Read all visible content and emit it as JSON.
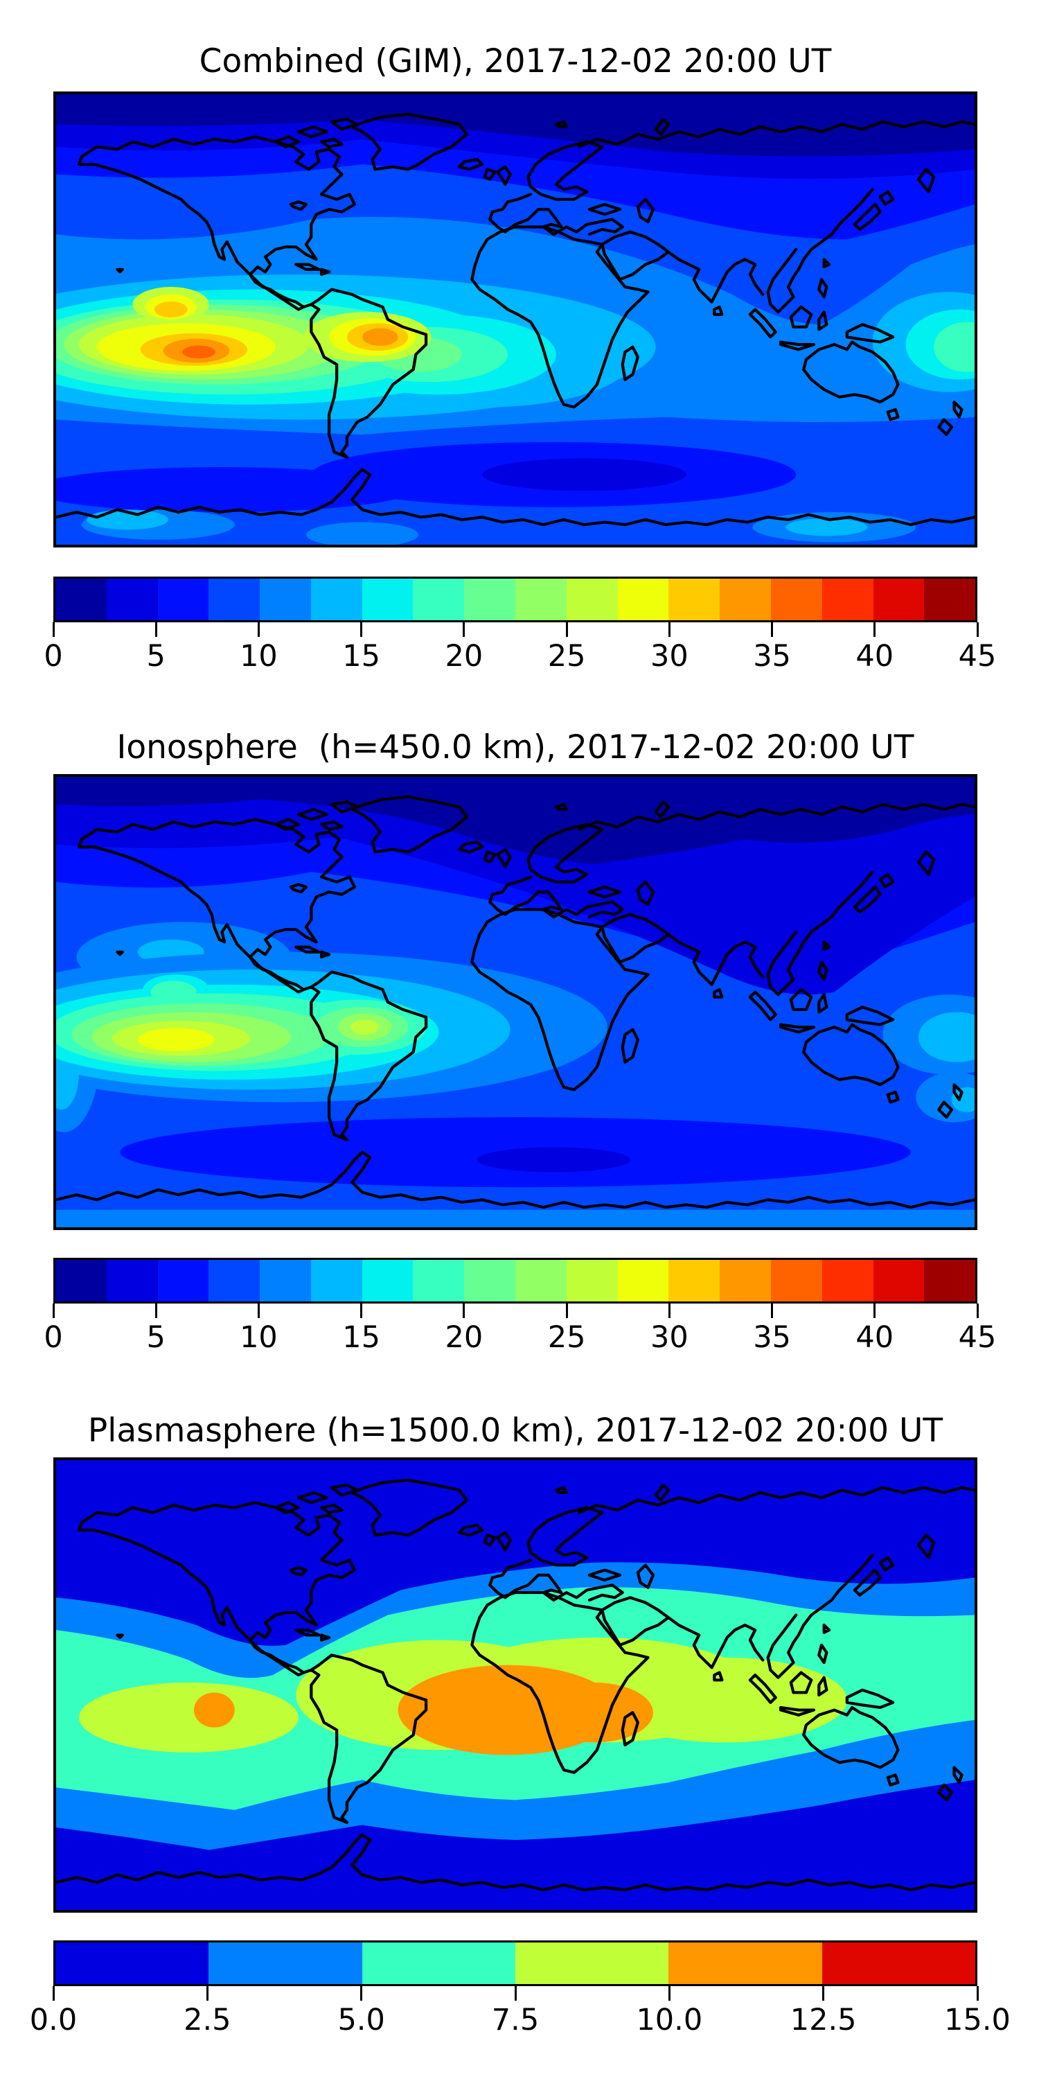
{
  "figure": {
    "background": "#ffffff",
    "frame_color": "#000000"
  },
  "panels": [
    {
      "id": "combined",
      "title": "Combined (GIM), 2017-12-02 20:00 UT",
      "colorbar": {
        "orientation": "horizontal",
        "vmin": 0,
        "vmax": 45,
        "level_step": 2.5,
        "tick_labels": [
          "0",
          "5",
          "10",
          "15",
          "20",
          "25",
          "30",
          "35",
          "40",
          "45"
        ],
        "tick_values": [
          0,
          5,
          10,
          15,
          20,
          25,
          30,
          35,
          40,
          45
        ],
        "segment_colors": [
          "#0000a0",
          "#0000e0",
          "#0010ff",
          "#0047ff",
          "#0080ff",
          "#00b8ff",
          "#00f1ef",
          "#37ffc0",
          "#65ff92",
          "#92ff65",
          "#c0ff37",
          "#eeff09",
          "#ffcb00",
          "#ff9700",
          "#ff6300",
          "#ff2e00",
          "#e00600",
          "#9e0000"
        ]
      }
    },
    {
      "id": "ionosphere",
      "title": "Ionosphere  (h=450.0 km), 2017-12-02 20:00 UT",
      "colorbar": {
        "orientation": "horizontal",
        "vmin": 0,
        "vmax": 45,
        "level_step": 2.5,
        "tick_labels": [
          "0",
          "5",
          "10",
          "15",
          "20",
          "25",
          "30",
          "35",
          "40",
          "45"
        ],
        "tick_values": [
          0,
          5,
          10,
          15,
          20,
          25,
          30,
          35,
          40,
          45
        ],
        "segment_colors": [
          "#0000a0",
          "#0000e0",
          "#0010ff",
          "#0047ff",
          "#0080ff",
          "#00b8ff",
          "#00f1ef",
          "#37ffc0",
          "#65ff92",
          "#92ff65",
          "#c0ff37",
          "#eeff09",
          "#ffcb00",
          "#ff9700",
          "#ff6300",
          "#ff2e00",
          "#e00600",
          "#9e0000"
        ]
      }
    },
    {
      "id": "plasmasphere",
      "title": "Plasmasphere (h=1500.0 km), 2017-12-02 20:00 UT",
      "colorbar": {
        "orientation": "horizontal",
        "vmin": 0,
        "vmax": 15,
        "level_step": 2.5,
        "tick_labels": [
          "0.0",
          "2.5",
          "5.0",
          "7.5",
          "10.0",
          "12.5",
          "15.0"
        ],
        "tick_values": [
          0,
          2.5,
          5,
          7.5,
          10,
          12.5,
          15
        ],
        "segment_colors": [
          "#0000e0",
          "#0080ff",
          "#37ffc0",
          "#c0ff37",
          "#ff9700",
          "#e00600"
        ]
      }
    }
  ],
  "chart_data": [
    {
      "type": "heatmap",
      "subtype": "filled-contour-world-map",
      "title": "Combined (GIM), 2017-12-02 20:00 UT",
      "projection": "equirectangular",
      "lon_range": [
        -180,
        180
      ],
      "lat_range": [
        -90,
        90
      ],
      "colormap": "jet",
      "levels": [
        0,
        2.5,
        5,
        7.5,
        10,
        12.5,
        15,
        17.5,
        20,
        22.5,
        25,
        27.5,
        30,
        32.5,
        35,
        37.5,
        40,
        42.5,
        45
      ],
      "coastlines": true,
      "features": [
        {
          "name": "pacific-equatorial-anomaly-maximum",
          "lon": -122,
          "lat": -13,
          "approx_value": 40
        },
        {
          "name": "south-america-atlantic-maximum",
          "lon": -52,
          "lat": -8,
          "approx_value": 37.5
        },
        {
          "name": "north-pacific-secondary-maximum",
          "lon": -135,
          "lat": 6,
          "approx_value": 37.5
        },
        {
          "name": "africa-equatorial-band",
          "lon": 10,
          "lat": -10,
          "approx_value": 17.5
        },
        {
          "name": "high-latitude-minimum-north",
          "lon": 90,
          "lat": 80,
          "approx_value": 1
        },
        {
          "name": "south-indian-ocean-minimum",
          "lon": 25,
          "lat": -60,
          "approx_value": 4
        }
      ]
    },
    {
      "type": "heatmap",
      "subtype": "filled-contour-world-map",
      "title": "Ionosphere  (h=450.0 km), 2017-12-02 20:00 UT",
      "projection": "equirectangular",
      "lon_range": [
        -180,
        180
      ],
      "lat_range": [
        -90,
        90
      ],
      "colormap": "jet",
      "levels": [
        0,
        2.5,
        5,
        7.5,
        10,
        12.5,
        15,
        17.5,
        20,
        22.5,
        25,
        27.5,
        30,
        32.5,
        35,
        37.5,
        40,
        42.5,
        45
      ],
      "coastlines": true,
      "features": [
        {
          "name": "pacific-equatorial-anomaly-maximum",
          "lon": -115,
          "lat": -15,
          "approx_value": 30
        },
        {
          "name": "south-america-secondary-maximum",
          "lon": -60,
          "lat": -10,
          "approx_value": 27.5
        },
        {
          "name": "north-pacific-crest",
          "lon": -135,
          "lat": 5,
          "approx_value": 25
        },
        {
          "name": "eurasia-high-latitude-minimum",
          "lon": 80,
          "lat": 60,
          "approx_value": 1
        },
        {
          "name": "southern-ocean-low-band",
          "lon": 20,
          "lat": -60,
          "approx_value": 4
        }
      ]
    },
    {
      "type": "heatmap",
      "subtype": "filled-contour-world-map",
      "title": "Plasmasphere (h=1500.0 km), 2017-12-02 20:00 UT",
      "projection": "equirectangular",
      "lon_range": [
        -180,
        180
      ],
      "lat_range": [
        -90,
        90
      ],
      "colormap": "jet",
      "levels": [
        0,
        2.5,
        5,
        7.5,
        10,
        12.5,
        15
      ],
      "coastlines": true,
      "features": [
        {
          "name": "equatorial-africa-atlantic-maximum",
          "lon": 0,
          "lat": -10,
          "approx_value": 11
        },
        {
          "name": "east-africa-lobe",
          "lon": 32,
          "lat": -11,
          "approx_value": 11
        },
        {
          "name": "pacific-secondary-maximum",
          "lon": -118,
          "lat": -10,
          "approx_value": 10.5
        },
        {
          "name": "yellow-green-equatorial-belt",
          "lon": 40,
          "lat": 0,
          "approx_value": 8.5
        },
        {
          "name": "polar-minimum-bands",
          "lon": 0,
          "lat": 75,
          "approx_value": 1.5
        }
      ]
    }
  ]
}
